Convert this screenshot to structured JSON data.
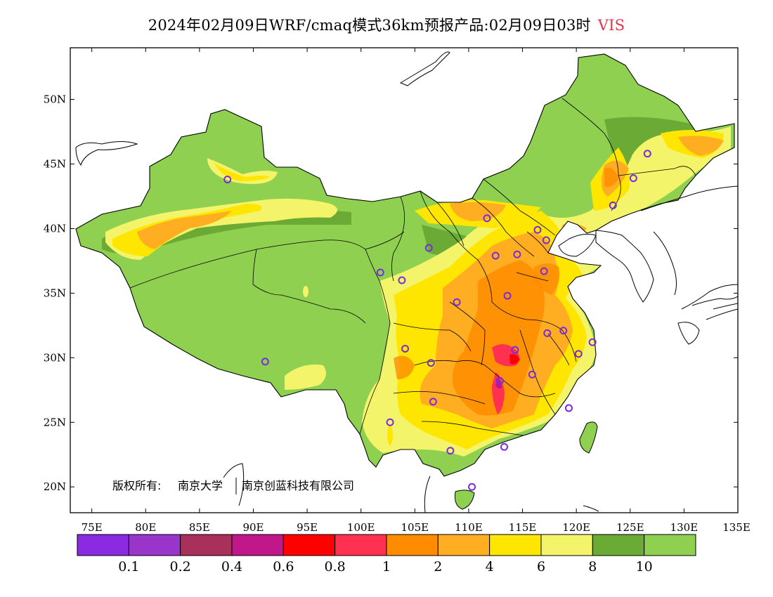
{
  "title": {
    "text": "2024年02月09日WRF/cmaq模式36km预报产品:02月09日03时",
    "variable": "VIS",
    "variable_color": "#e8344a"
  },
  "copyright": {
    "owner_label": "版权所有:",
    "org1": "南京大学",
    "org2": "南京创蓝科技有限公司"
  },
  "map": {
    "lon_ticks": [
      "75E",
      "80E",
      "85E",
      "90E",
      "95E",
      "100E",
      "105E",
      "110E",
      "115E",
      "120E",
      "125E",
      "130E",
      "135E"
    ],
    "lat_ticks": [
      "50N",
      "45N",
      "40N",
      "35N",
      "30N",
      "25N",
      "20N"
    ],
    "lon_range": [
      73,
      135
    ],
    "lat_range": [
      18,
      54
    ]
  },
  "legend": {
    "colors": [
      "#8a2be2",
      "#9a35cc",
      "#a8305a",
      "#c0188a",
      "#ff0000",
      "#ff3050",
      "#ff8c00",
      "#ffae22",
      "#ffe600",
      "#f4f46a",
      "#6aaa35",
      "#8fd050"
    ],
    "labels": [
      "0.1",
      "0.2",
      "0.4",
      "0.6",
      "0.8",
      "1",
      "2",
      "4",
      "6",
      "8",
      "10"
    ]
  },
  "stations": [
    {
      "lon": 87.6,
      "lat": 43.8
    },
    {
      "lon": 91.1,
      "lat": 29.7
    },
    {
      "lon": 101.8,
      "lat": 36.6
    },
    {
      "lon": 103.8,
      "lat": 36.0
    },
    {
      "lon": 106.3,
      "lat": 38.5
    },
    {
      "lon": 111.7,
      "lat": 40.8
    },
    {
      "lon": 112.5,
      "lat": 37.9
    },
    {
      "lon": 114.5,
      "lat": 38.0
    },
    {
      "lon": 116.4,
      "lat": 39.9
    },
    {
      "lon": 117.2,
      "lat": 39.1
    },
    {
      "lon": 117.0,
      "lat": 36.7
    },
    {
      "lon": 113.6,
      "lat": 34.8
    },
    {
      "lon": 108.9,
      "lat": 34.3
    },
    {
      "lon": 104.1,
      "lat": 30.7
    },
    {
      "lon": 106.5,
      "lat": 29.6
    },
    {
      "lon": 114.3,
      "lat": 30.6
    },
    {
      "lon": 117.3,
      "lat": 31.9
    },
    {
      "lon": 118.8,
      "lat": 32.1
    },
    {
      "lon": 121.5,
      "lat": 31.2
    },
    {
      "lon": 120.2,
      "lat": 30.3
    },
    {
      "lon": 115.9,
      "lat": 28.7
    },
    {
      "lon": 112.9,
      "lat": 28.2
    },
    {
      "lon": 106.7,
      "lat": 26.6
    },
    {
      "lon": 102.7,
      "lat": 25.0
    },
    {
      "lon": 119.3,
      "lat": 26.1
    },
    {
      "lon": 113.3,
      "lat": 23.1
    },
    {
      "lon": 108.3,
      "lat": 22.8
    },
    {
      "lon": 110.3,
      "lat": 20.0
    },
    {
      "lon": 123.4,
      "lat": 41.8
    },
    {
      "lon": 125.3,
      "lat": 43.9
    },
    {
      "lon": 126.6,
      "lat": 45.8
    }
  ]
}
